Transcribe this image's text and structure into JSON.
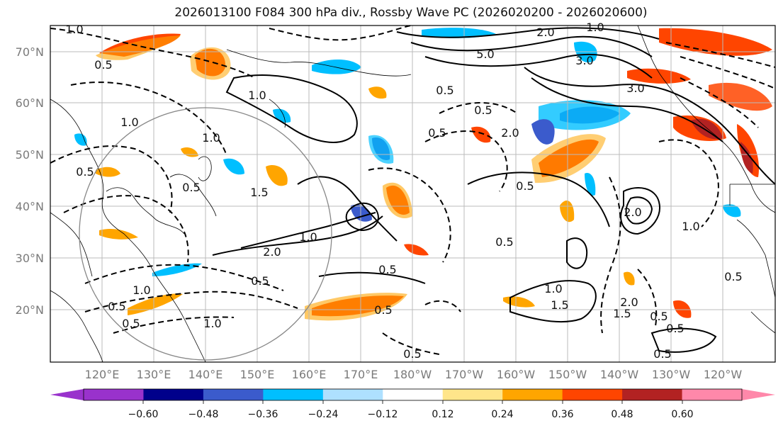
{
  "title": "2026013100 F084 300 hPa div., Rossby Wave PC (2026020200 - 2026020600)",
  "lat_labels": [
    "70°N",
    "60°N",
    "50°N",
    "40°N",
    "30°N",
    "20°N"
  ],
  "lon_labels": [
    "120°E",
    "130°E",
    "140°E",
    "150°E",
    "160°E",
    "170°E",
    "180°W",
    "170°W",
    "160°W",
    "150°W",
    "140°W",
    "130°W",
    "120°W"
  ],
  "colorbar": {
    "tick_labels": [
      "−0.60",
      "−0.48",
      "−0.36",
      "−0.24",
      "−0.12",
      "0.12",
      "0.24",
      "0.36",
      "0.48",
      "0.60"
    ],
    "colors": [
      "#9932cc",
      "#00008b",
      "#3b5bcc",
      "#00bfff",
      "#aee0ff",
      "#ffffff",
      "#ffe58a",
      "#ffa500",
      "#ff4500",
      "#b22222",
      "#ff88aa"
    ]
  },
  "contour_labels": [
    "2.0",
    "1.0",
    "5.0",
    "3.0",
    "3.0",
    "0.5",
    "1.0",
    "0.5",
    "1.5",
    "2.0",
    "0.5",
    "0.5",
    "1.0",
    "0.5",
    "1.0",
    "2.0",
    "0.5",
    "1.0",
    "0.5",
    "0.5",
    "1.5",
    "1.0",
    "0.5",
    "2.0",
    "0.5",
    "0.5",
    "1.0",
    "1.5",
    "2.0",
    "0.5",
    "1.0",
    "0.5",
    "0.5",
    "0.5",
    "0.5",
    "0.5",
    "1.0",
    "1.0",
    "0.5"
  ],
  "colors": {
    "background": "#ffffff",
    "coast": "#000000",
    "grid": "#bbbbbb",
    "axis_text": "#7a7a7a"
  }
}
